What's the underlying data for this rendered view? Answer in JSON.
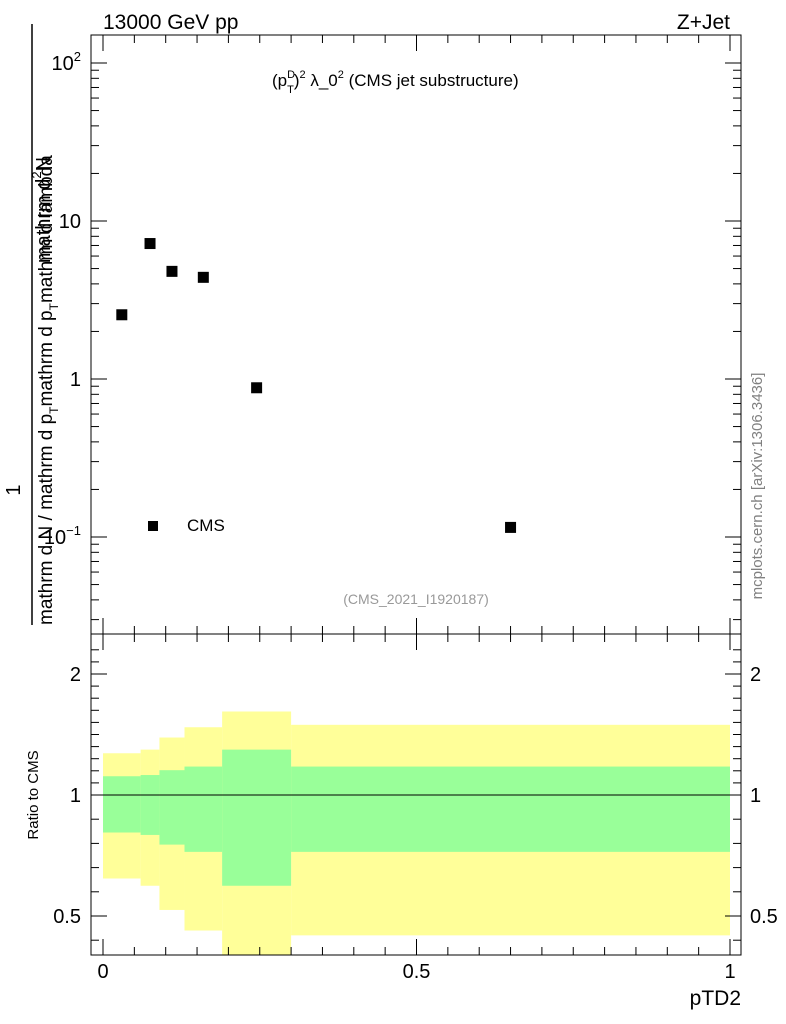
{
  "header": {
    "left": "13000 GeV pp",
    "right": "Z+Jet"
  },
  "side_label": "mcplots.cern.ch [arXiv:1306.3436]",
  "analysis_label": "(CMS_2021_I1920187)",
  "colors": {
    "data_marker": "#000000",
    "band_outer": "#ffff99",
    "band_inner": "#99ff99",
    "analysis_label": "#999999",
    "side_label": "#808080"
  },
  "chart_data": [
    {
      "type": "scatter",
      "title": "(p_T^D)^2 λ_0^2 (CMS jet substructure)",
      "ylabel": "1 / mathrm d N / mathrm d p_T mathrm d p_T mathrm d lambda  ·  mathrm d²N",
      "yscale": "log",
      "ylim": [
        0.025,
        150
      ],
      "xlim": [
        -0.02,
        1.02
      ],
      "y_tick_labels": [
        "10^-1",
        "1",
        "10",
        "10^2"
      ],
      "legend": {
        "entries": [
          "CMS"
        ],
        "position": "lower-left"
      },
      "series": [
        {
          "name": "CMS",
          "x": [
            0.03,
            0.075,
            0.11,
            0.16,
            0.245,
            0.65
          ],
          "y": [
            2.55,
            7.2,
            4.8,
            4.4,
            0.88,
            0.115
          ]
        }
      ]
    },
    {
      "type": "area",
      "ylabel": "Ratio to CMS",
      "xlabel": "pTD2",
      "ylim": [
        0.35,
        2.25
      ],
      "xlim": [
        -0.02,
        1.02
      ],
      "x_tick_labels": [
        "0",
        "0.5",
        "1"
      ],
      "y_tick_labels": [
        "0.5",
        "1",
        "2"
      ],
      "reference_line": 1,
      "bins": [
        {
          "lo": 0.0,
          "hi": 0.06,
          "inner": [
            0.845,
            1.155
          ],
          "outer": [
            0.655,
            1.345
          ]
        },
        {
          "lo": 0.06,
          "hi": 0.09,
          "inner": [
            0.835,
            1.165
          ],
          "outer": [
            0.625,
            1.375
          ]
        },
        {
          "lo": 0.09,
          "hi": 0.13,
          "inner": [
            0.795,
            1.205
          ],
          "outer": [
            0.525,
            1.475
          ]
        },
        {
          "lo": 0.13,
          "hi": 0.19,
          "inner": [
            0.765,
            1.235
          ],
          "outer": [
            0.44,
            1.56
          ]
        },
        {
          "lo": 0.19,
          "hi": 0.3,
          "inner": [
            0.625,
            1.375
          ],
          "outer": [
            0.31,
            1.69
          ]
        },
        {
          "lo": 0.3,
          "hi": 1.0,
          "inner": [
            0.765,
            1.235
          ],
          "outer": [
            0.42,
            1.58
          ]
        }
      ]
    }
  ]
}
